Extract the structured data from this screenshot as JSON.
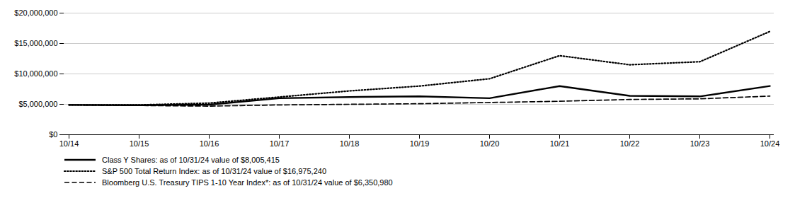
{
  "chart_data": {
    "type": "line",
    "categories": [
      "10/14",
      "10/15",
      "10/16",
      "10/17",
      "10/18",
      "10/19",
      "10/20",
      "10/21",
      "10/22",
      "10/23",
      "10/24"
    ],
    "series": [
      {
        "name": "Class Y Shares: as of 10/31/24 value of $8,005,415",
        "color": "#000000",
        "line_style": "solid",
        "values": [
          4900000,
          4850000,
          4950000,
          6000000,
          6200000,
          6300000,
          6000000,
          8000000,
          6400000,
          6300000,
          8005415
        ]
      },
      {
        "name": "S&P 500 Total Return Index: as of 10/31/24 value of $16,975,240",
        "color": "#000000",
        "line_style": "dotted",
        "values": [
          4900000,
          4900000,
          5200000,
          6200000,
          7200000,
          8000000,
          9200000,
          13000000,
          11500000,
          12000000,
          16975240
        ]
      },
      {
        "name": "Bloomberg U.S. Treasury TIPS 1-10 Year Index*: as of 10/31/24 value of $6,350,980",
        "color": "#000000",
        "line_style": "dashed",
        "values": [
          4900000,
          4800000,
          4700000,
          4900000,
          5000000,
          5100000,
          5300000,
          5500000,
          5800000,
          5900000,
          6350980
        ]
      }
    ],
    "ylim": [
      0,
      20000000
    ],
    "yticks": [
      {
        "value": 0,
        "label": "$0"
      },
      {
        "value": 5000000,
        "label": "$5,000,000"
      },
      {
        "value": 10000000,
        "label": "$10,000,000"
      },
      {
        "value": 15000000,
        "label": "$15,000,000"
      },
      {
        "value": 20000000,
        "label": "$20,000,000"
      }
    ],
    "grid": true,
    "legend": "bottom"
  }
}
